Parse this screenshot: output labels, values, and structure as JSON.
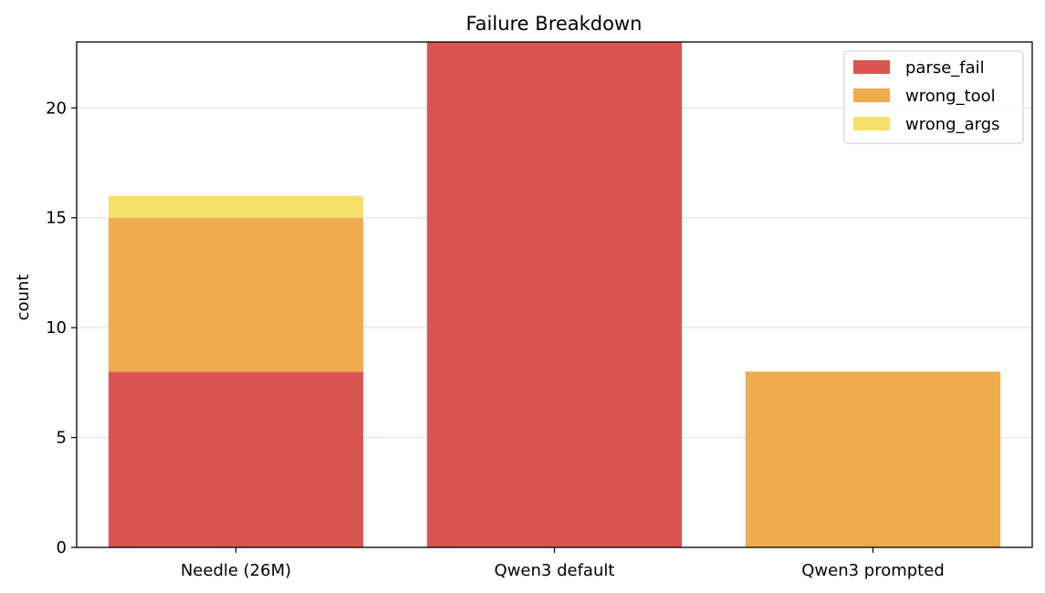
{
  "chart_data": {
    "type": "bar",
    "stacked": true,
    "title": "Failure Breakdown",
    "xlabel": "",
    "ylabel": "count",
    "ylim": [
      0,
      23
    ],
    "yticks": [
      "0",
      "5",
      "10",
      "15",
      "20"
    ],
    "categories": [
      "Needle (26M)",
      "Qwen3 default",
      "Qwen3 prompted"
    ],
    "series": [
      {
        "name": "parse_fail",
        "color": "#db5550",
        "values": [
          8,
          23,
          0
        ]
      },
      {
        "name": "wrong_tool",
        "color": "#efac4e",
        "values": [
          7,
          0,
          8
        ]
      },
      {
        "name": "wrong_args",
        "color": "#f6e06c",
        "values": [
          1,
          0,
          0
        ]
      }
    ],
    "grid": "y",
    "legend_position": "top-right"
  }
}
